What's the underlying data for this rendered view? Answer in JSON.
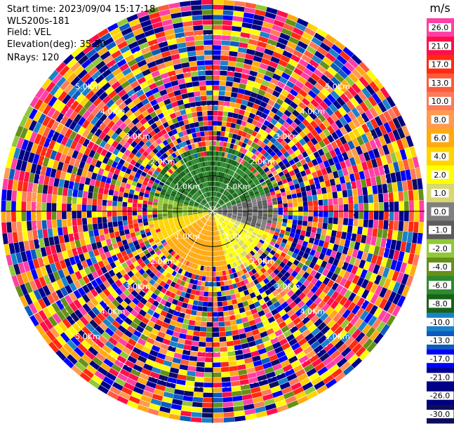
{
  "header": {
    "start_time": "Start time: 2023/09/04 15:17:18",
    "instrument": "WLS200s-181",
    "field": "Field: VEL",
    "elevation": "Elevation(deg): 35.30",
    "nrays": "NRays: 120"
  },
  "chart_data": {
    "type": "heatmap",
    "projection": "polar-ppi",
    "rays": 120,
    "range_unit": "km",
    "range_max_km": 6.0,
    "range_rings_km": [
      1.0,
      2.0,
      3.0,
      4.0,
      5.0
    ],
    "range_labels": [
      "1.0Km",
      "2.0Km",
      "3.0Km",
      "4.0Km",
      "5.0Km"
    ],
    "radials_deg": [
      0,
      30,
      60,
      90,
      120,
      150,
      180,
      210,
      240,
      270,
      300,
      330
    ],
    "signal_region_km": 1.8,
    "colorbar": {
      "title": "m/s",
      "ticks": [
        "26.0",
        "21.0",
        "17.0",
        "13.0",
        "10.0",
        "8.0",
        "6.0",
        "4.0",
        "2.0",
        "1.0",
        "0.0",
        "-1.0",
        "-2.0",
        "-4.0",
        "-6.0",
        "-8.0",
        "-10.0",
        "-13.0",
        "-17.0",
        "-21.0",
        "-26.0",
        "-30.0"
      ],
      "colors": [
        "#ff3fa6",
        "#ff0f4a",
        "#ff2a10",
        "#ff5a3a",
        "#ff7a5a",
        "#ff9a50",
        "#ffaa10",
        "#ffd400",
        "#ffff00",
        "#d8d870",
        "#808080",
        "#5c5c5c",
        "#90c837",
        "#669018",
        "#2e8a2e",
        "#186318",
        "#1b82c9",
        "#0c5bbf",
        "#0000ff",
        "#00008b",
        "#000080",
        "#0d0d5e"
      ]
    }
  }
}
